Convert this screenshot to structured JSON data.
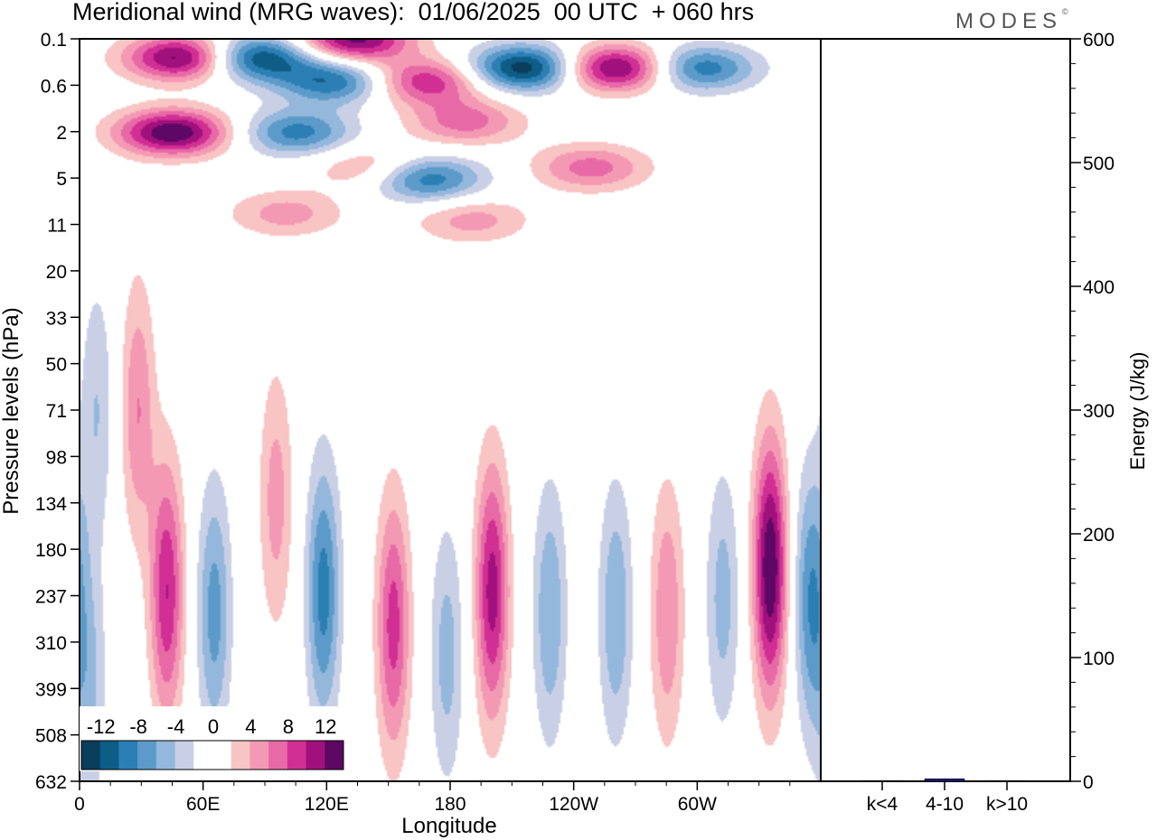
{
  "title": "Meridional wind (MRG waves):  01/06/2025  00 UTC  + 060 hrs",
  "logo": "MODES",
  "chart_data": [
    {
      "type": "heatmap",
      "title": "Meridional wind (MRG waves):  01/06/2025  00 UTC  + 060 hrs",
      "xlabel": "Longitude",
      "ylabel": "Pressure levels (hPa)",
      "x_ticks": [
        "0",
        "60E",
        "120E",
        "180",
        "120W",
        "60W"
      ],
      "y_ticks": [
        "0.1",
        "0.6",
        "2",
        "5",
        "11",
        "20",
        "33",
        "50",
        "71",
        "98",
        "134",
        "180",
        "237",
        "310",
        "399",
        "508",
        "632"
      ],
      "colorbar": {
        "labels": [
          "-12",
          "-8",
          "-4",
          "0",
          "4",
          "8",
          "12"
        ],
        "colors": [
          "#0b3d5c",
          "#0e5d86",
          "#2b7fb4",
          "#5c9bc9",
          "#94b7dc",
          "#c9d0e6",
          "#ffffff",
          "#ffffff",
          "#f9c4c4",
          "#f499b4",
          "#e76aa6",
          "#d12f94",
          "#a0117d",
          "#5e0865"
        ]
      },
      "features": [
        {
          "lon": 45,
          "lev": 2,
          "value": 14
        },
        {
          "lon": 50,
          "lev": 0.2,
          "value": 14
        },
        {
          "lon": 85,
          "lev": 0.2,
          "value": -13
        },
        {
          "lon": 123,
          "lev": 0.5,
          "value": -10
        },
        {
          "lon": 105,
          "lev": 2,
          "value": -9
        },
        {
          "lon": 133,
          "lev": 0.1,
          "value": 13
        },
        {
          "lon": 168,
          "lev": 0.5,
          "value": 10
        },
        {
          "lon": 187,
          "lev": 1.5,
          "value": 7
        },
        {
          "lon": 216,
          "lev": 0.3,
          "value": -14
        },
        {
          "lon": 260,
          "lev": 0.3,
          "value": 14
        },
        {
          "lon": 300,
          "lev": 0.3,
          "value": -10
        },
        {
          "lon": 248,
          "lev": 4,
          "value": 7
        },
        {
          "lon": 168,
          "lev": 5,
          "value": -10
        },
        {
          "lon": 141,
          "lev": 4,
          "value": 5
        },
        {
          "lon": 100,
          "lev": 9,
          "value": 5
        },
        {
          "lon": 190,
          "lev": 10,
          "value": 5
        },
        {
          "lon": 28,
          "lev": 70,
          "value": 6
        },
        {
          "lon": 42,
          "lev": 230,
          "value": 10
        },
        {
          "lon": 65,
          "lev": 260,
          "value": -7
        },
        {
          "lon": 95,
          "lev": 130,
          "value": 5
        },
        {
          "lon": 118,
          "lev": 230,
          "value": -9
        },
        {
          "lon": 152,
          "lev": 280,
          "value": 9
        },
        {
          "lon": 178,
          "lev": 330,
          "value": -5
        },
        {
          "lon": 200,
          "lev": 230,
          "value": 11
        },
        {
          "lon": 228,
          "lev": 260,
          "value": -6
        },
        {
          "lon": 260,
          "lev": 260,
          "value": -6
        },
        {
          "lon": 285,
          "lev": 260,
          "value": 6
        },
        {
          "lon": 312,
          "lev": 240,
          "value": -5
        },
        {
          "lon": 335,
          "lev": 200,
          "value": 14
        },
        {
          "lon": 355,
          "lev": 240,
          "value": -8
        },
        {
          "lon": 5,
          "lev": 400,
          "value": -4
        },
        {
          "lon": 8,
          "lev": 70,
          "value": -4
        }
      ]
    },
    {
      "type": "bar",
      "ylabel": "Energy (J/kg)",
      "ylim": [
        0,
        600
      ],
      "y_ticks": [
        0,
        100,
        200,
        300,
        400,
        500,
        600
      ],
      "categories": [
        "k<4",
        "4-10",
        "k>10"
      ],
      "values": [
        0,
        2,
        0
      ],
      "colors": [
        "#000066",
        "#1a1a8c",
        "#000066"
      ]
    }
  ]
}
